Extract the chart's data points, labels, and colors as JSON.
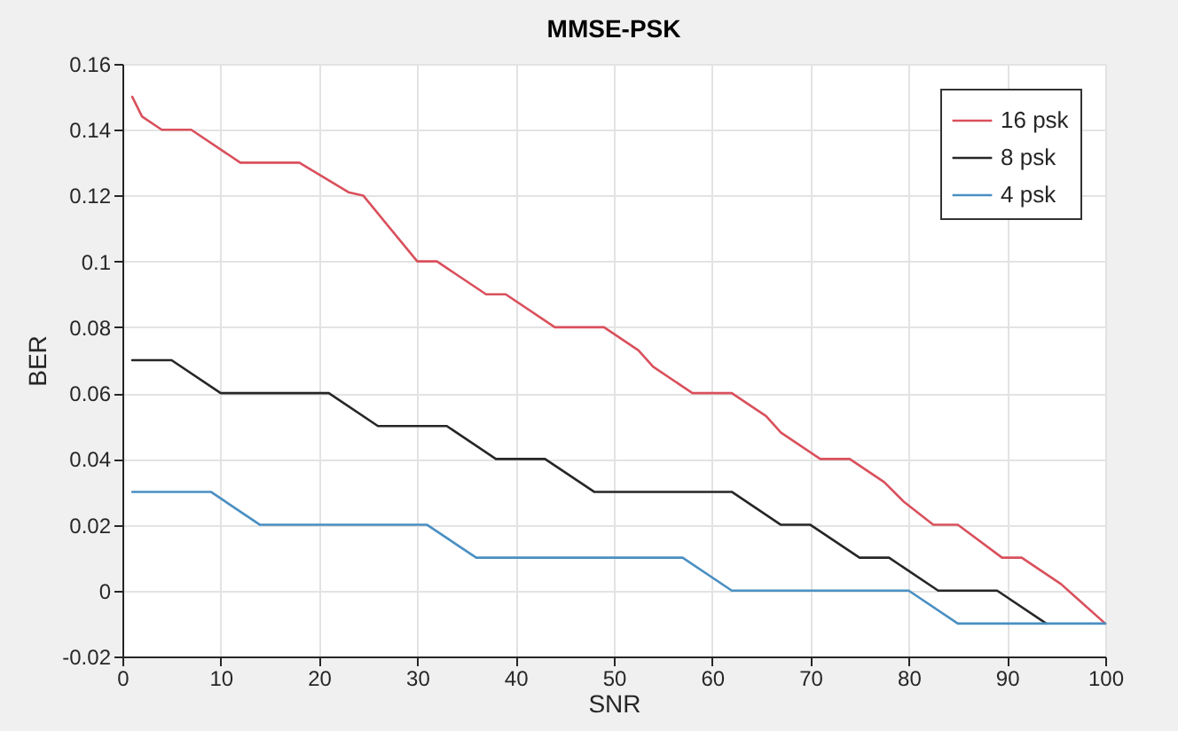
{
  "chart_data": {
    "type": "line",
    "title": "MMSE-PSK",
    "xlabel": "SNR",
    "ylabel": "BER",
    "xlim": [
      0,
      100
    ],
    "xticks": [
      0,
      10,
      20,
      30,
      40,
      50,
      60,
      70,
      80,
      90,
      100
    ],
    "ylim": [
      -0.02,
      0.16
    ],
    "yticks": [
      -0.02,
      0,
      0.02,
      0.04,
      0.06,
      0.08,
      0.1,
      0.12,
      0.14,
      0.16
    ],
    "grid": true,
    "legend": "top right",
    "marker": "none",
    "line_style": "solid",
    "series": [
      {
        "name": "16 psk",
        "color": "#d9505c",
        "x": [
          1,
          2,
          4,
          7,
          12,
          18,
          23,
          24.5,
          30,
          32,
          37,
          39,
          44,
          49,
          52.5,
          54,
          58,
          62,
          65.5,
          67,
          71,
          74,
          77.5,
          79.5,
          82.5,
          85,
          89.5,
          91.5,
          95.5,
          97,
          100
        ],
        "values": [
          0.15,
          0.144,
          0.14,
          0.14,
          0.13,
          0.13,
          0.121,
          0.12,
          0.1,
          0.1,
          0.09,
          0.09,
          0.08,
          0.08,
          0.073,
          0.068,
          0.06,
          0.06,
          0.053,
          0.048,
          0.04,
          0.04,
          0.033,
          0.027,
          0.02,
          0.02,
          0.01,
          0.01,
          0.002,
          -0.002,
          -0.01
        ]
      },
      {
        "name": "8 psk",
        "color": "#262626",
        "x": [
          1,
          5,
          10,
          21,
          26,
          33,
          38,
          43,
          48,
          62,
          67,
          70,
          75,
          78,
          83,
          89,
          94
        ],
        "values": [
          0.07,
          0.07,
          0.06,
          0.06,
          0.05,
          0.05,
          0.04,
          0.04,
          0.03,
          0.03,
          0.02,
          0.02,
          0.01,
          0.01,
          0,
          0,
          -0.01
        ]
      },
      {
        "name": "4 psk",
        "color": "#4a8fc2",
        "x": [
          1,
          9,
          14,
          31,
          36,
          57,
          62,
          80,
          85,
          100
        ],
        "values": [
          0.03,
          0.03,
          0.02,
          0.02,
          0.01,
          0.01,
          0,
          0,
          -0.01,
          -0.01
        ]
      }
    ]
  }
}
